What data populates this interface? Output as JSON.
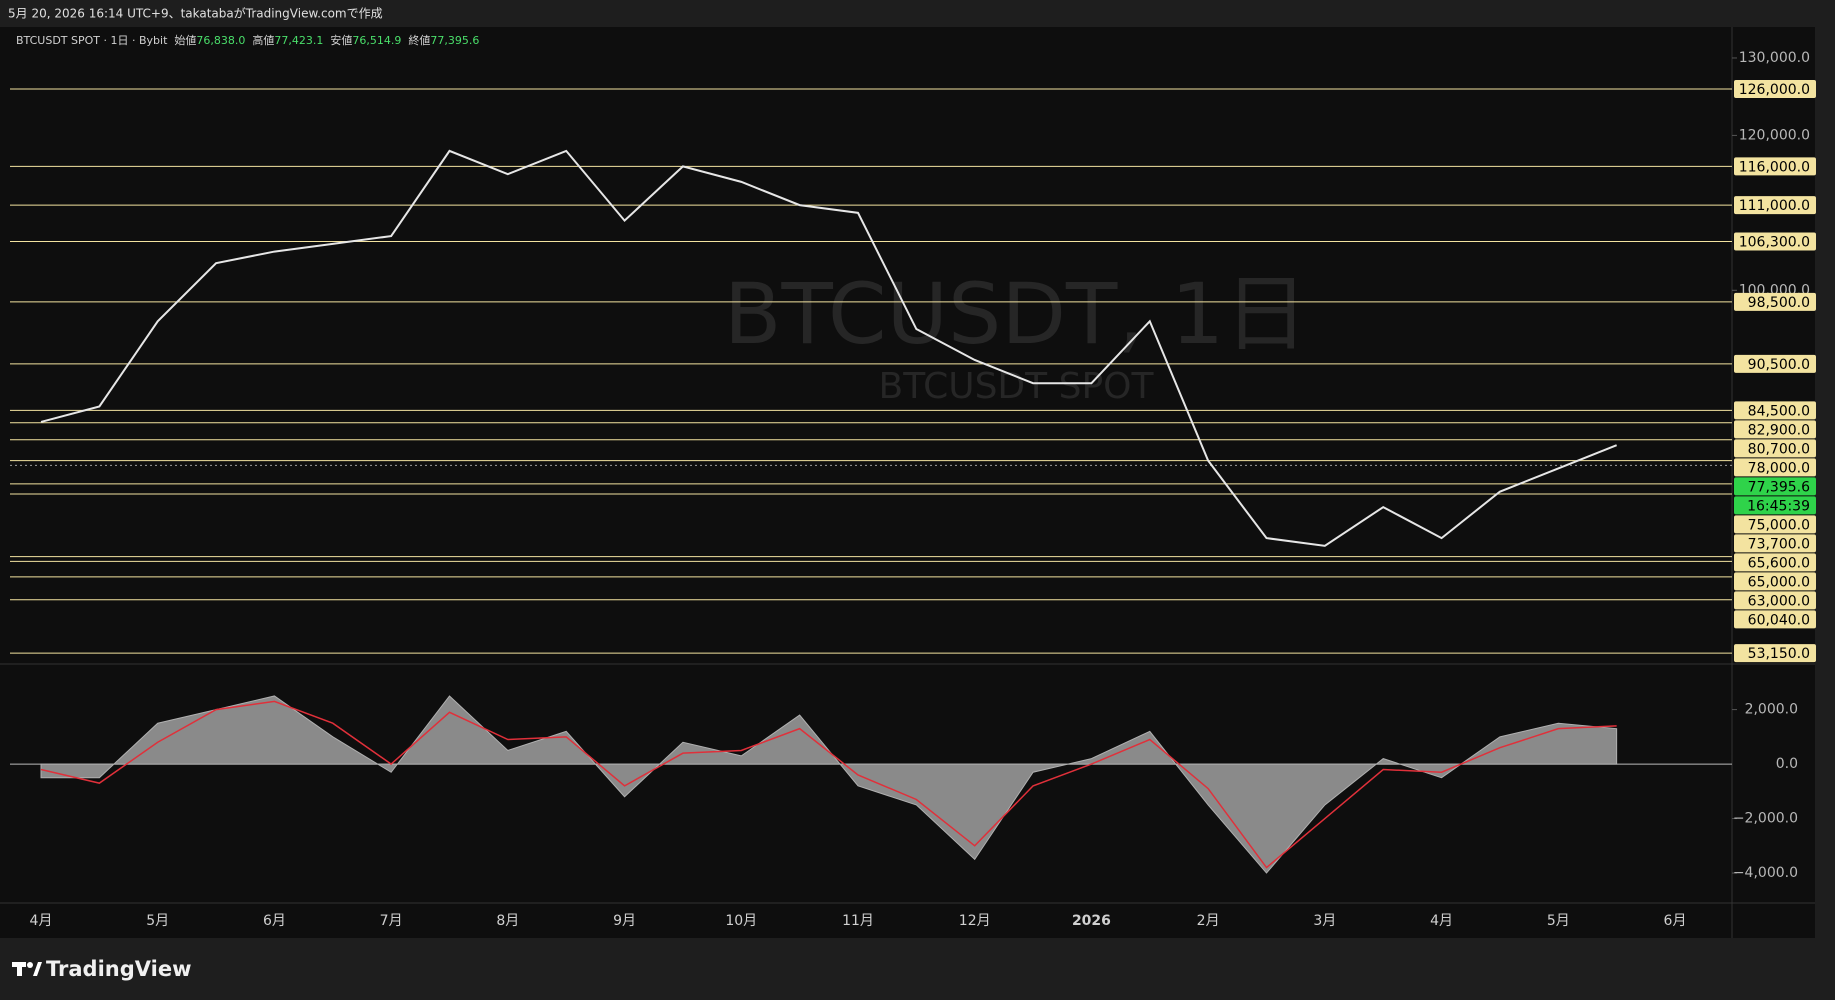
{
  "header": {
    "caption": "5月 20, 2026 16:14 UTC+9、takatabaがTradingView.comで作成"
  },
  "footer": {
    "brand": "TradingView"
  },
  "chart_data": [
    {
      "type": "line",
      "title": "BTCUSDT SPOT · 1日 · Bybit",
      "ohlc": [
        {
          "name": "始値",
          "value": {
            "value": 76838,
            "label": "76,838.0"
          }
        },
        {
          "name": "高値",
          "value": {
            "value": 77423.1,
            "label": "77,423.1"
          }
        },
        {
          "name": "安値",
          "value": {
            "value": 76514.9,
            "label": "76,514.9"
          }
        },
        {
          "name": "終値",
          "value": {
            "value": 77395.6,
            "label": "77,395.6"
          }
        }
      ],
      "watermark": [
        "BTCUSDT, 1日",
        "BTCUSDT SPOT"
      ],
      "categories": [
        "4月",
        null,
        "5月",
        null,
        "6月",
        null,
        "7月",
        null,
        "8月",
        null,
        "9月",
        null,
        "10月",
        null,
        "11月",
        null,
        "12月",
        null,
        "2026",
        null,
        "2月",
        null,
        "3月",
        null,
        "4月",
        null,
        "5月",
        null,
        "6月"
      ],
      "series": [
        {
          "color": "#e6e6e6",
          "values": [
            83000,
            85000,
            96000,
            103500,
            105000,
            106000,
            107000,
            118000,
            115000,
            118000,
            109000,
            116000,
            114000,
            111000,
            110000,
            95000,
            91000,
            88000,
            88000,
            96000,
            78000,
            68000,
            67000,
            72000,
            68000,
            74000,
            77000,
            80000,
            null
          ]
        }
      ],
      "ylim": [
        52000,
        134000
      ],
      "yticks": [
        {
          "value": 130000,
          "label": "130,000.0"
        },
        {
          "value": 120000,
          "label": "120,000.0"
        },
        {
          "value": 100000,
          "label": "100,000.0"
        }
      ],
      "levels": [
        {
          "value": 126000,
          "label": "126,000.0"
        },
        {
          "value": 116000,
          "label": "116,000.0"
        },
        {
          "value": 111000,
          "label": "111,000.0"
        },
        {
          "value": 106300,
          "label": "106,300.0"
        },
        {
          "value": 98500,
          "label": "98,500.0"
        },
        {
          "value": 90500,
          "label": "90,500.0"
        },
        {
          "value": 84500,
          "label": "84,500.0"
        },
        {
          "value": 82900,
          "label": "82,900.0"
        },
        {
          "value": 80700,
          "label": "80,700.0"
        },
        {
          "value": 78000,
          "label": "78,000.0"
        },
        {
          "value": 75000,
          "label": "75,000.0"
        },
        {
          "value": 73700,
          "label": "73,700.0"
        },
        {
          "value": 65600,
          "label": "65,600.0"
        },
        {
          "value": 65000,
          "label": "65,000.0"
        },
        {
          "value": 63000,
          "label": "63,000.0"
        },
        {
          "value": 60040,
          "label": "60,040.0"
        },
        {
          "value": 53150,
          "label": "53,150.0"
        }
      ],
      "level_color": "#f3e3a0",
      "last_price": {
        "value": 77395.6,
        "label": "77,395.6"
      },
      "last_price_color": "#2fd34a",
      "countdown": "16:45:39"
    },
    {
      "type": "area",
      "series": [
        {
          "color": "#8a8a8a",
          "values": [
            -500,
            -500,
            1500,
            2000,
            2500,
            1000,
            -300,
            2500,
            500,
            1200,
            -1200,
            800,
            300,
            1800,
            -800,
            -1500,
            -3500,
            -300,
            200,
            1200,
            -1500,
            -4000,
            -1500,
            200,
            -500,
            1000,
            1500,
            1300,
            null
          ]
        },
        {
          "color": "#e0303a",
          "values": [
            -200,
            -700,
            800,
            2000,
            2300,
            1500,
            0,
            1900,
            900,
            1000,
            -800,
            400,
            500,
            1300,
            -400,
            -1300,
            -3000,
            -800,
            0,
            900,
            -900,
            -3800,
            -2000,
            -200,
            -300,
            600,
            1300,
            1400,
            null
          ]
        }
      ],
      "ylim": [
        -5100,
        3600
      ],
      "yticks": [
        {
          "value": 2000,
          "label": "2,000.0"
        },
        {
          "value": 0,
          "label": "0.0"
        },
        {
          "value": -2000,
          "label": "−2,000.0"
        },
        {
          "value": -4000,
          "label": "−4,000.0"
        }
      ]
    }
  ]
}
